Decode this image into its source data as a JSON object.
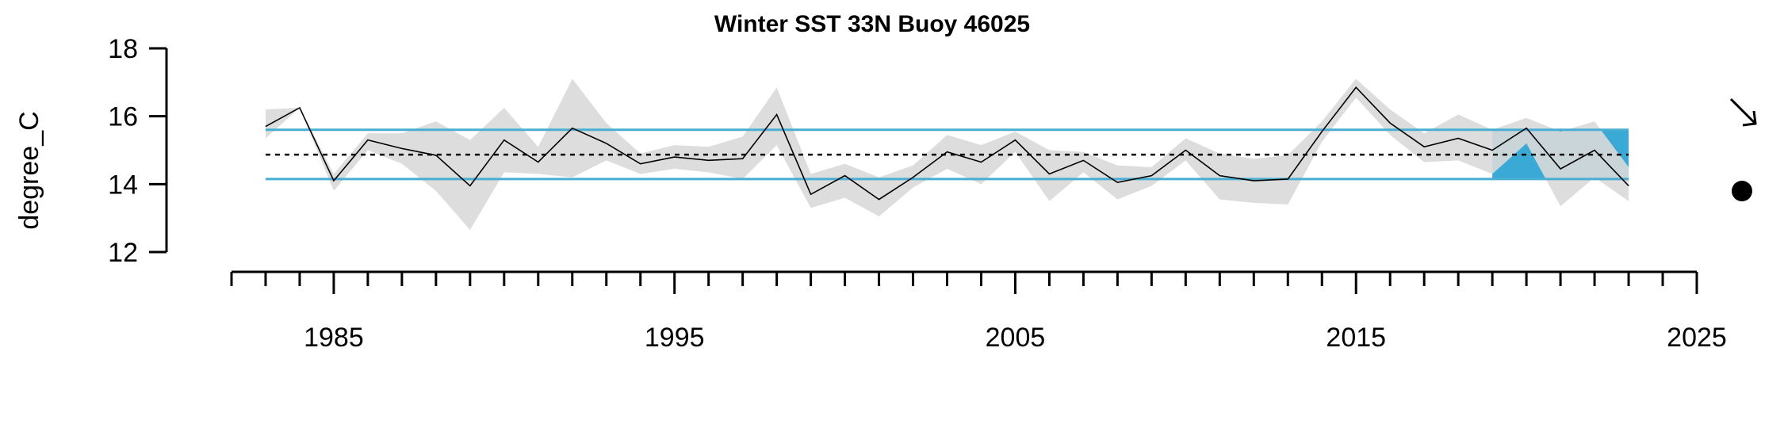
{
  "chart_data": {
    "type": "line",
    "title": "Winter SST 33N Buoy 46025",
    "xlabel": "",
    "ylabel": "degree_C",
    "xlim": [
      1982,
      2025
    ],
    "ylim": [
      12,
      18
    ],
    "x_ticks": [
      1985,
      1995,
      2005,
      2015,
      2025
    ],
    "y_ticks": [
      12,
      14,
      16,
      18
    ],
    "grid": false,
    "colors": {
      "line": "#000000",
      "band": "#d9d9d9",
      "ref_lines": "#4aaed3",
      "recent_fill": "#3aa9d6",
      "mean_line": "#000000"
    },
    "series": [
      {
        "x": [
          1983,
          1984,
          1985,
          1986,
          1987,
          1988,
          1989,
          1990,
          1991,
          1992,
          1993,
          1994,
          1995,
          1996,
          1997,
          1998,
          1999,
          2000,
          2001,
          2002,
          2003,
          2004,
          2005,
          2006,
          2007,
          2008,
          2009,
          2010,
          2011,
          2012,
          2013,
          2014,
          2015,
          2016,
          2017,
          2018,
          2019,
          2020,
          2021,
          2022,
          2023
        ],
        "values": [
          15.7,
          16.25,
          14.1,
          15.3,
          15.05,
          14.85,
          13.95,
          15.3,
          14.65,
          15.65,
          15.2,
          14.6,
          14.8,
          14.7,
          14.75,
          16.05,
          13.7,
          14.25,
          13.55,
          14.2,
          14.95,
          14.65,
          15.3,
          14.3,
          14.7,
          14.05,
          14.25,
          15.0,
          14.25,
          14.1,
          14.15,
          15.55,
          16.85,
          15.8,
          15.1,
          15.35,
          15.0,
          15.65,
          14.45,
          15.0,
          13.95
        ],
        "upper": [
          16.2,
          16.25,
          14.3,
          15.5,
          15.5,
          15.85,
          15.3,
          16.25,
          15.1,
          17.1,
          15.8,
          14.9,
          15.15,
          15.1,
          15.4,
          16.85,
          14.3,
          14.6,
          14.2,
          14.55,
          15.45,
          15.15,
          15.55,
          15.0,
          14.95,
          14.55,
          14.5,
          15.35,
          14.9,
          14.75,
          14.85,
          15.85,
          17.1,
          16.2,
          15.5,
          16.05,
          15.6,
          15.95,
          15.55,
          15.85,
          14.5
        ],
        "lower": [
          15.35,
          16.25,
          13.8,
          15.0,
          14.6,
          13.8,
          12.65,
          14.35,
          14.3,
          14.2,
          14.7,
          14.3,
          14.45,
          14.35,
          14.15,
          15.15,
          13.3,
          13.6,
          13.05,
          13.9,
          14.45,
          14.0,
          14.95,
          13.5,
          14.35,
          13.55,
          13.95,
          14.7,
          13.55,
          13.45,
          13.4,
          15.25,
          16.55,
          15.45,
          14.65,
          14.7,
          14.3,
          15.2,
          13.35,
          14.2,
          13.5
        ]
      }
    ],
    "reference_lines": {
      "mean": 14.87,
      "upper": 15.6,
      "lower": 14.15
    },
    "recent_window": {
      "x_start": 2019,
      "x_end": 2023
    },
    "indicators": {
      "trend": "decreasing",
      "mean_status": "below"
    }
  }
}
